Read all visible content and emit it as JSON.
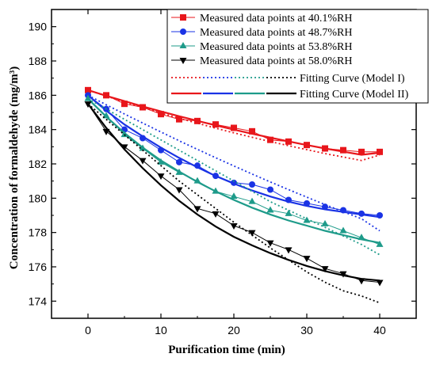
{
  "chart_data": {
    "type": "line",
    "xlabel": "Purification time (min)",
    "ylabel": "Concentration of formaldehyde (mg/m³)",
    "xlim": [
      -5,
      45
    ],
    "ylim": [
      173,
      191
    ],
    "xticks": [
      0,
      10,
      20,
      30,
      40
    ],
    "yticks": [
      174,
      176,
      178,
      180,
      182,
      184,
      186,
      188,
      190
    ],
    "grid": false,
    "legend_position": "top-right",
    "x": [
      0,
      2.5,
      5,
      7.5,
      10,
      12.5,
      15,
      17.5,
      20,
      22.5,
      25,
      27.5,
      30,
      32.5,
      35,
      37.5,
      40
    ],
    "series": [
      {
        "name": "Measured data points at 40.1%RH",
        "color": "#e8161b",
        "marker": "square",
        "values": [
          186.3,
          186.0,
          185.5,
          185.3,
          184.9,
          184.6,
          184.5,
          184.3,
          184.1,
          183.9,
          183.4,
          183.3,
          183.1,
          182.9,
          182.8,
          182.7,
          182.7
        ],
        "model1": [
          186.3,
          185.95,
          185.61,
          185.29,
          184.97,
          184.66,
          184.37,
          184.08,
          183.81,
          183.55,
          183.3,
          183.06,
          182.83,
          182.6,
          182.4,
          182.2,
          182.52
        ],
        "model2": [
          186.3,
          185.97,
          185.66,
          185.35,
          185.06,
          184.78,
          184.51,
          184.25,
          184.0,
          183.76,
          183.53,
          183.31,
          183.1,
          182.9,
          182.71,
          182.53,
          182.65
        ]
      },
      {
        "name": "Measured data points at 48.7%RH",
        "color": "#1a33e5",
        "marker": "circle",
        "values": [
          186.0,
          185.2,
          184.0,
          183.5,
          182.8,
          182.1,
          181.9,
          181.3,
          180.9,
          180.8,
          180.5,
          179.9,
          179.7,
          179.5,
          179.3,
          179.1,
          179.0
        ],
        "model1": [
          186.0,
          185.45,
          184.91,
          184.38,
          183.86,
          183.35,
          182.85,
          182.36,
          181.88,
          181.41,
          180.95,
          180.5,
          180.06,
          179.63,
          179.21,
          178.8,
          178.1
        ],
        "model2": [
          186.0,
          185.1,
          184.3,
          183.6,
          182.95,
          182.35,
          181.8,
          181.3,
          180.85,
          180.45,
          180.1,
          179.8,
          179.55,
          179.35,
          179.2,
          179.05,
          178.9
        ]
      },
      {
        "name": "Measured data points at 53.8%RH",
        "color": "#1e9b8a",
        "marker": "triangle-up",
        "values": [
          185.8,
          184.8,
          183.7,
          182.9,
          182.1,
          181.5,
          181.0,
          180.4,
          180.1,
          179.8,
          179.3,
          179.1,
          178.7,
          178.5,
          178.1,
          177.7,
          177.3
        ],
        "model1": [
          185.8,
          185.2,
          184.6,
          184.0,
          183.4,
          182.8,
          182.2,
          181.6,
          181.0,
          180.4,
          179.8,
          179.3,
          178.8,
          178.3,
          177.8,
          177.3,
          176.7
        ],
        "model2": [
          185.8,
          184.75,
          183.8,
          182.95,
          182.2,
          181.55,
          180.95,
          180.4,
          179.9,
          179.45,
          179.05,
          178.7,
          178.4,
          178.1,
          177.85,
          177.6,
          177.4
        ]
      },
      {
        "name": "Measured data points at 58.0%RH",
        "color": "#000000",
        "marker": "triangle-down",
        "values": [
          185.5,
          183.9,
          183.0,
          182.2,
          181.3,
          180.5,
          179.4,
          179.1,
          178.4,
          178.0,
          177.4,
          177.0,
          176.5,
          175.9,
          175.6,
          175.2,
          175.1
        ],
        "model1": [
          185.5,
          184.6,
          183.7,
          182.8,
          181.9,
          181.0,
          180.2,
          179.4,
          178.6,
          177.85,
          177.1,
          176.4,
          175.7,
          175.1,
          174.6,
          174.3,
          173.9
        ],
        "model2": [
          185.5,
          184.1,
          182.85,
          181.75,
          180.75,
          179.85,
          179.05,
          178.35,
          177.75,
          177.25,
          176.8,
          176.4,
          176.05,
          175.75,
          175.5,
          175.3,
          175.2
        ]
      }
    ],
    "fit_legend": [
      {
        "label": "Fitting Curve (Model I)",
        "style": "dotted"
      },
      {
        "label": "Fitting Curve (Model II)",
        "style": "solid"
      }
    ]
  }
}
